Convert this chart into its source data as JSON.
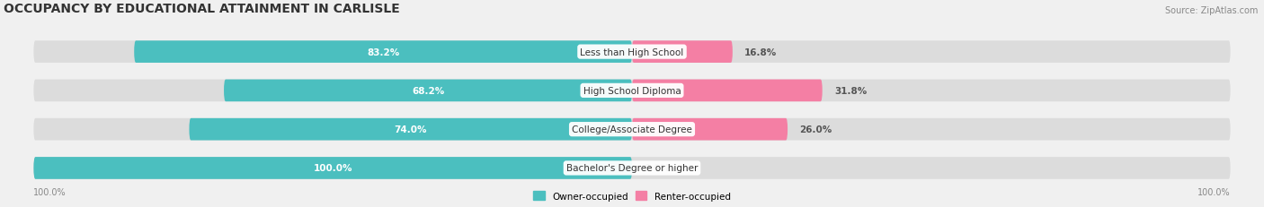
{
  "title": "OCCUPANCY BY EDUCATIONAL ATTAINMENT IN CARLISLE",
  "source": "Source: ZipAtlas.com",
  "categories": [
    "Less than High School",
    "High School Diploma",
    "College/Associate Degree",
    "Bachelor's Degree or higher"
  ],
  "owner_values": [
    83.2,
    68.2,
    74.0,
    100.0
  ],
  "renter_values": [
    16.8,
    31.8,
    26.0,
    0.0
  ],
  "owner_color": "#4BBFBF",
  "renter_color": "#F47FA4",
  "background_color": "#F0F0F0",
  "bar_background": "#E0E0E0",
  "title_fontsize": 10,
  "source_fontsize": 7,
  "label_fontsize": 7.5,
  "bar_height": 0.55,
  "x_left_label": "100.0%",
  "x_right_label": "100.0%"
}
